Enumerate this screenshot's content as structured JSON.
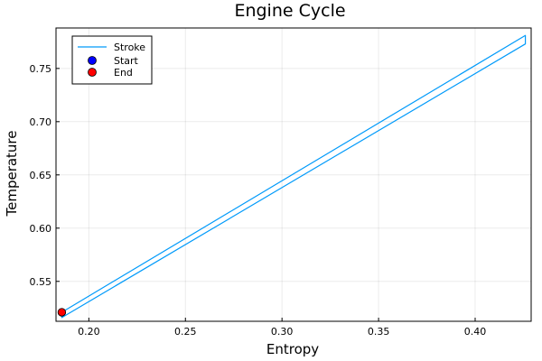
{
  "chart_data": {
    "type": "line",
    "title": "Engine Cycle",
    "xlabel": "Entropy",
    "ylabel": "Temperature",
    "xlim": [
      0.183,
      0.429
    ],
    "ylim": [
      0.5125,
      0.788
    ],
    "xticks": [
      0.2,
      0.25,
      0.3,
      0.35,
      0.4
    ],
    "xtick_labels": [
      "0.20",
      "0.25",
      "0.30",
      "0.35",
      "0.40"
    ],
    "yticks": [
      0.55,
      0.6,
      0.65,
      0.7,
      0.75
    ],
    "ytick_labels": [
      "0.55",
      "0.60",
      "0.65",
      "0.70",
      "0.75"
    ],
    "grid": true,
    "legend_position": "top-left",
    "series": [
      {
        "name": "Stroke",
        "kind": "line",
        "color": "#009AFA",
        "x": [
          0.186,
          0.426,
          0.426,
          0.186,
          0.186
        ],
        "y": [
          0.521,
          0.781,
          0.773,
          0.516,
          0.521
        ]
      },
      {
        "name": "Start",
        "kind": "marker",
        "color": "#0000FF",
        "x": [
          0.186
        ],
        "y": [
          0.521
        ]
      },
      {
        "name": "End",
        "kind": "marker",
        "color": "#FF0000",
        "x": [
          0.186
        ],
        "y": [
          0.521
        ]
      }
    ]
  }
}
